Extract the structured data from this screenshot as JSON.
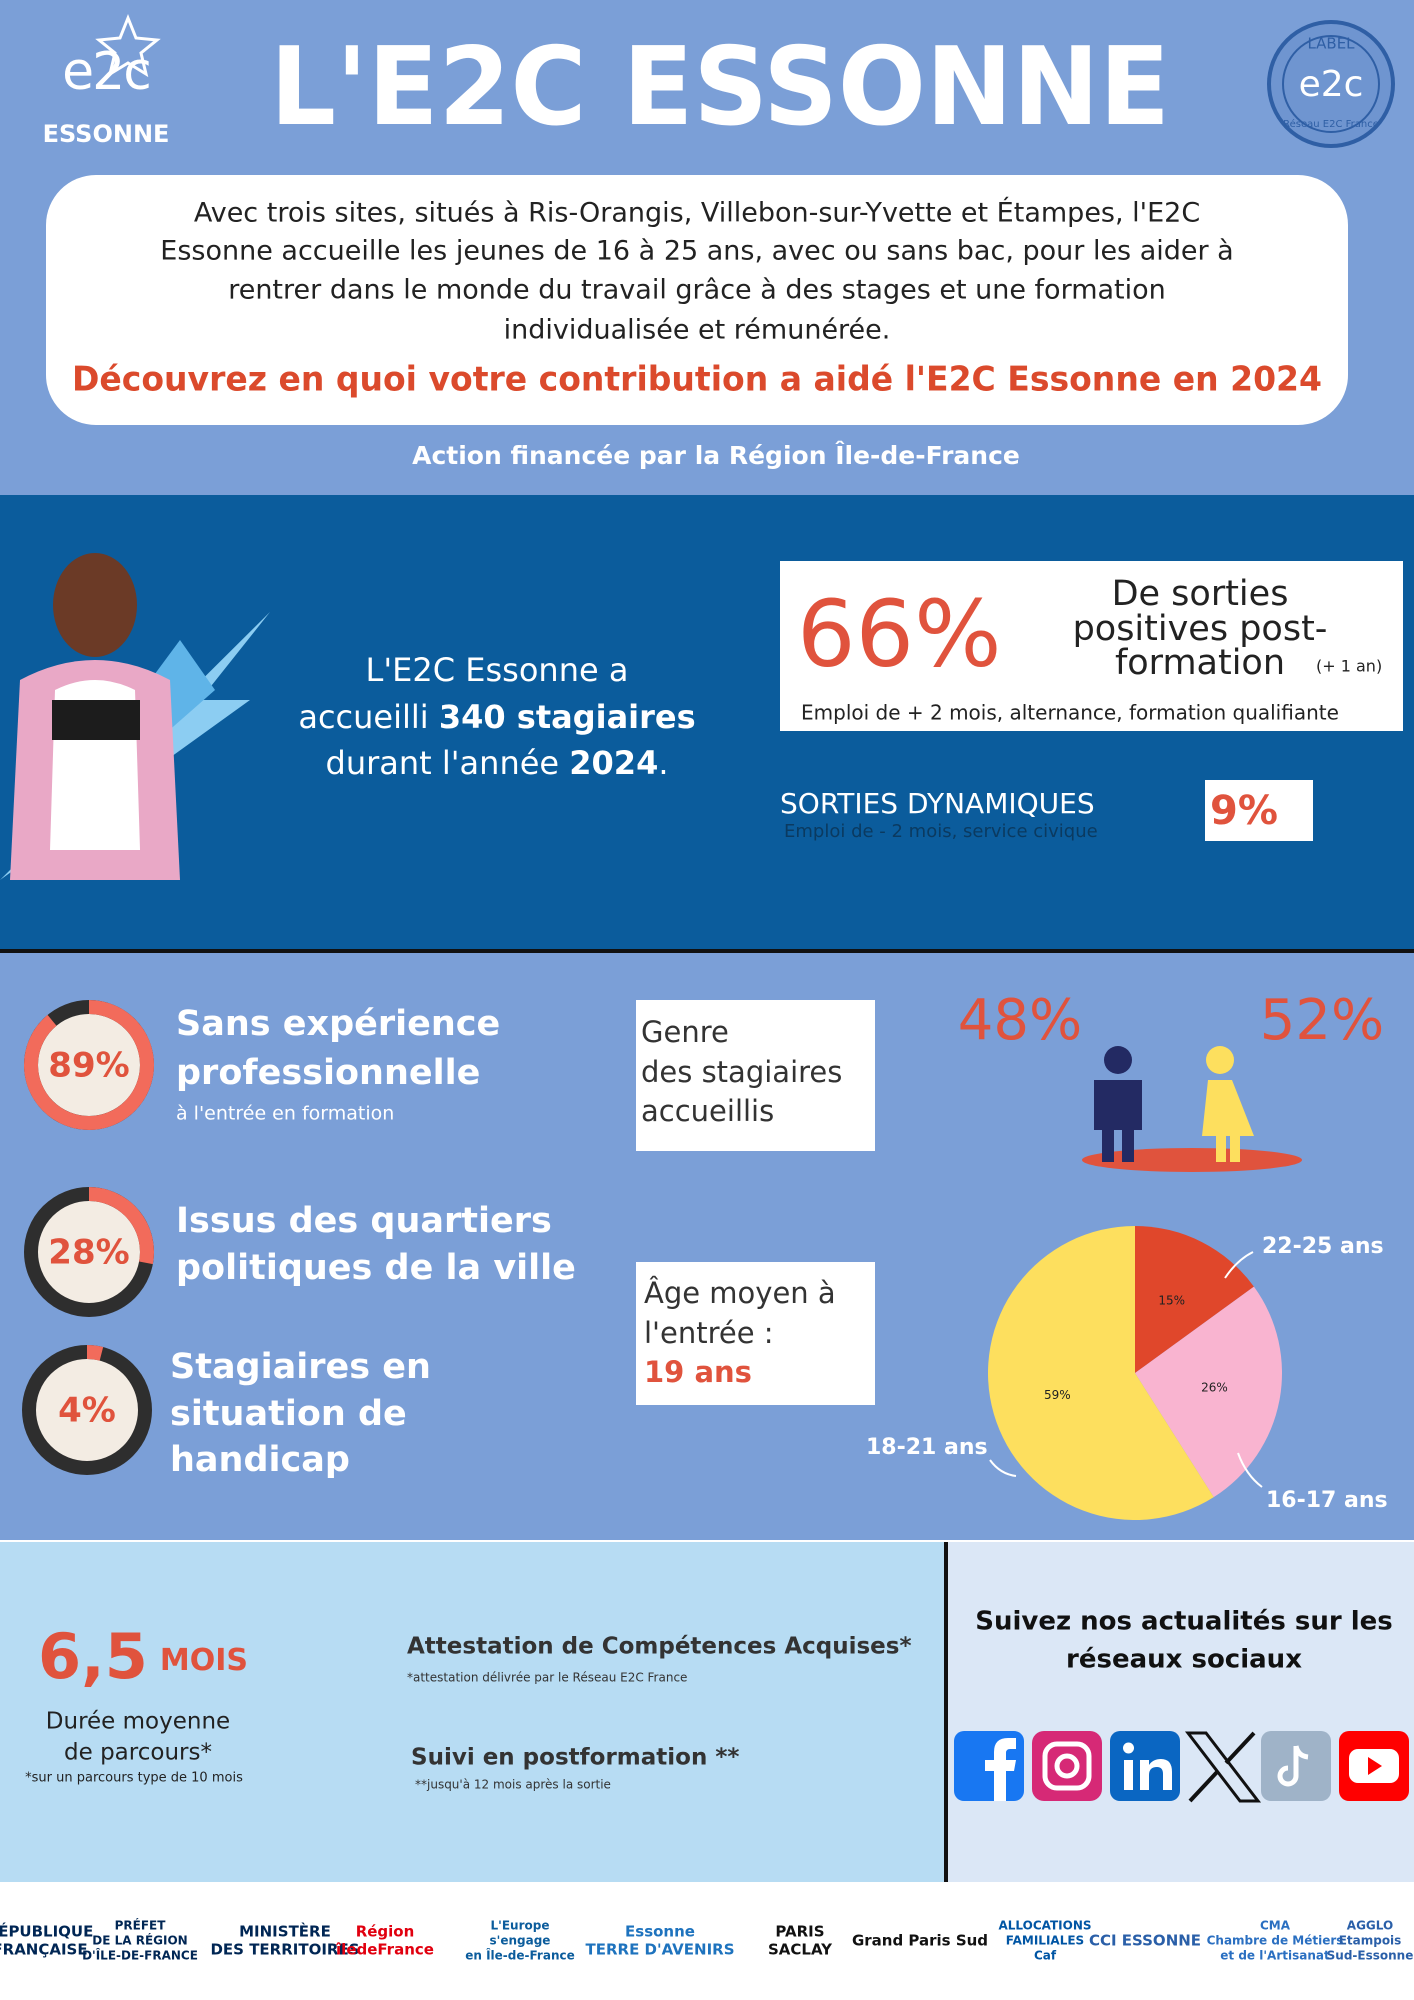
{
  "header": {
    "logo": {
      "mark": "e2c",
      "name": "ESSONNE"
    },
    "title": "L'E2C ESSONNE",
    "badge": {
      "top": "LABEL",
      "mark": "e2c",
      "bottom": "Réseau E2C France"
    },
    "intro_lines": [
      "Avec trois sites, situés à Ris-Orangis, Villebon-sur-Yvette et Étampes, l'E2C",
      "Essonne accueille les jeunes de 16 à 25 ans, avec ou sans bac, pour les aider à",
      "rentrer dans le monde du travail grâce à des stages et une formation",
      "individualisée et rémunérée."
    ],
    "highlight": "Découvrez en quoi votre contribution a aidé l'E2C Essonne en 2024",
    "funding": "Action financée par la Région Île-de-France"
  },
  "welcome": {
    "lines": [
      [
        "L'E2C Essonne a"
      ],
      [
        "accueilli ",
        "340 stagiaires"
      ],
      [
        "durant l'année ",
        "2024",
        "."
      ]
    ]
  },
  "positive_exits": {
    "label": "66%",
    "title_lines": [
      "De sorties",
      "positives post-",
      "formation"
    ],
    "note": "(+ 1 an)",
    "detail": "Emploi de + 2 mois, alternance, formation qualifiante"
  },
  "dynamic_exits": {
    "title": "SORTIES DYNAMIQUES",
    "detail": "Emploi de - 2 mois, service civique",
    "label": "9%"
  },
  "profile": [
    {
      "value": 89,
      "label": "89%",
      "title_lines": [
        "Sans expérience",
        "professionnelle"
      ],
      "note": "à l'entrée en formation"
    },
    {
      "value": 28,
      "label": "28%",
      "title_lines": [
        "Issus des quartiers",
        "politiques de la ville"
      ]
    },
    {
      "value": 4,
      "label": "4%",
      "title_lines": [
        "Stagiaires en",
        "situation de",
        "handicap"
      ]
    }
  ],
  "gender": {
    "title_lines": [
      "Genre",
      "des stagiaires",
      "accueillis"
    ],
    "men": "48%",
    "women": "52%"
  },
  "age": {
    "title_lines": [
      "Âge moyen à",
      "l'entrée :"
    ],
    "average": "19 ans"
  },
  "age_pie": {
    "type": "pie",
    "categories": [
      "22-25 ans",
      "16-17 ans",
      "18-21 ans"
    ],
    "values": [
      15,
      26,
      59
    ],
    "value_labels": [
      "15%",
      "26%",
      "59%"
    ],
    "colors": [
      "#e0472b",
      "#f9b4d0",
      "#fddf5e"
    ]
  },
  "journey": {
    "duration_value": "6,5",
    "duration_unit": "MOIS",
    "duration_lines": [
      "Durée moyenne",
      "de parcours*"
    ],
    "duration_note": "*sur un parcours type de 10 mois",
    "certificate": "Attestation de Compétences Acquises*",
    "certificate_note": "*attestation délivrée par le Réseau E2C France",
    "follow_up": "Suivi en postformation **",
    "follow_up_note": "**jusqu'à 12 mois après la sortie"
  },
  "social": {
    "title_lines": [
      "Suivez nos actualités sur les",
      "réseaux sociaux"
    ]
  },
  "partners": [
    [
      "RÉPUBLIQUE",
      "FRANÇAISE"
    ],
    [
      "PRÉFET",
      "DE LA RÉGION",
      "D'ÎLE-DE-FRANCE"
    ],
    [
      "MINISTÈRE",
      "DES TERRITOIRES"
    ],
    [
      "Région",
      "îledeFrance"
    ],
    [
      "L'Europe",
      "s'engage",
      "en Île-de-France"
    ],
    [
      "Essonne",
      "TERRE D'AVENIRS"
    ],
    [
      "PARIS",
      "SACLAY"
    ],
    [
      "Grand Paris Sud"
    ],
    [
      "ALLOCATIONS",
      "FAMILIALES",
      "Caf"
    ],
    [
      "CCI ESSONNE"
    ],
    [
      "CMA",
      "Chambre de Métiers",
      "et de l'Artisanat"
    ],
    [
      "AGGLO",
      "Etampois",
      "Sud-Essonne"
    ]
  ]
}
